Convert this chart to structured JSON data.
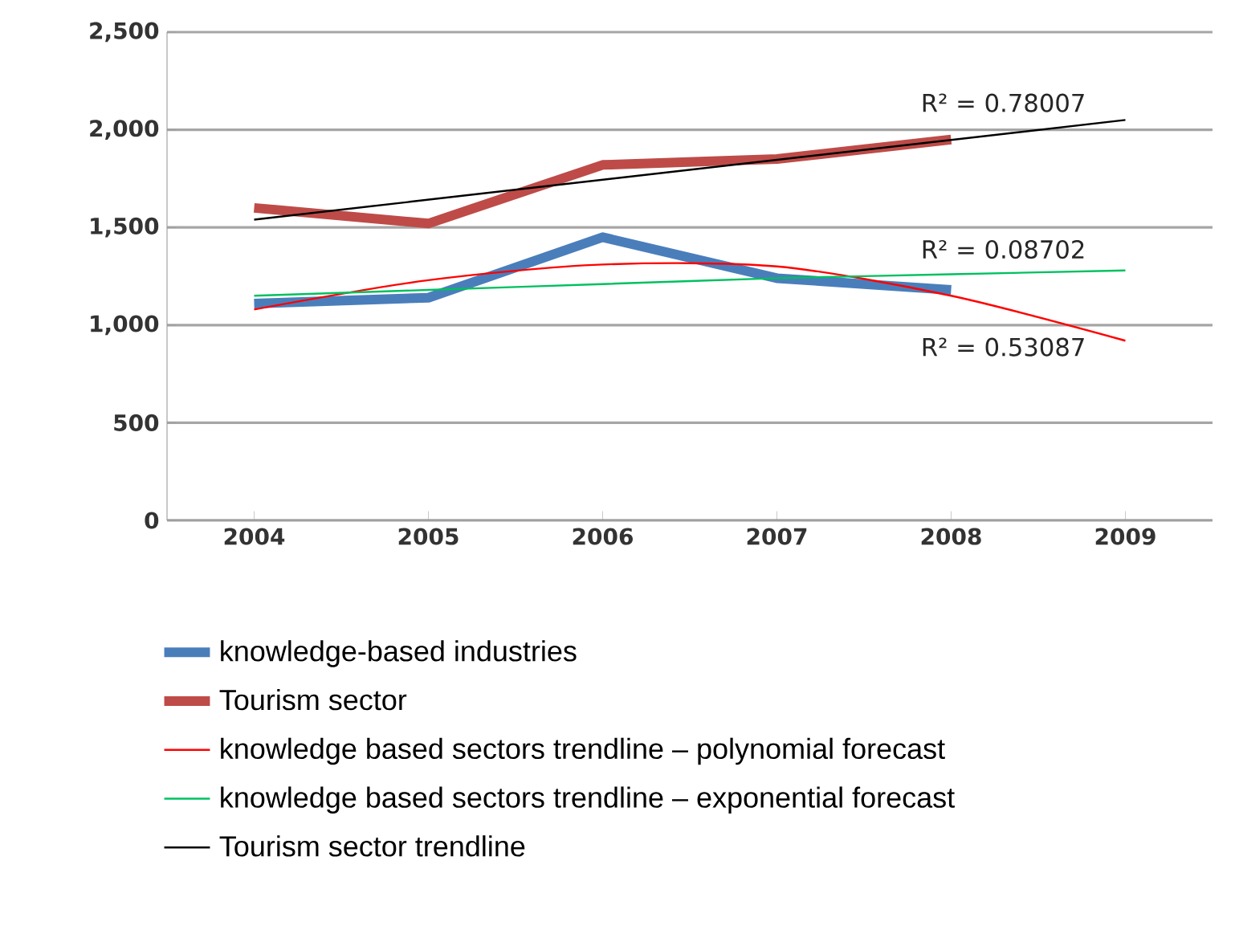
{
  "chart_data": {
    "type": "line",
    "x": [
      2004,
      2005,
      2006,
      2007,
      2008
    ],
    "xlim": [
      2003.5,
      2009.5
    ],
    "xticks": [
      2004,
      2005,
      2006,
      2007,
      2008,
      2009
    ],
    "ylim": [
      0,
      2500
    ],
    "yticks": [
      0,
      500,
      {
        "value": 1000,
        "label": "1,000"
      },
      {
        "value": 1500,
        "label": "1,500"
      },
      {
        "value": 2000,
        "label": "2,000"
      },
      {
        "value": 2500,
        "label": "2,500"
      }
    ],
    "grid": "y",
    "legend": "bottom",
    "marker": "none",
    "line_style": "solid",
    "series": [
      {
        "name": "knowledge-based industries",
        "color": "#4a7ebb",
        "values": [
          1110,
          1140,
          1450,
          1240,
          1180
        ]
      },
      {
        "name": "Tourism sector",
        "color": "#be4b48",
        "values": [
          1600,
          1520,
          1820,
          1850,
          1950
        ]
      },
      {
        "name": "knowledge based sectors trendline – polynomial forecast",
        "color": "#ff0000",
        "x": [
          2004,
          2005,
          2006,
          2007,
          2008,
          2009
        ],
        "values": [
          1080,
          1230,
          1310,
          1300,
          1150,
          920
        ]
      },
      {
        "name": "knowledge based sectors trendline – exponential forecast",
        "color": "#00c060",
        "x": [
          2004,
          2005,
          2006,
          2007,
          2008,
          2009
        ],
        "values": [
          1150,
          1180,
          1210,
          1240,
          1260,
          1280
        ]
      },
      {
        "name": "Tourism sector trendline",
        "color": "#000000",
        "x": [
          2004,
          2009
        ],
        "values": [
          1540,
          2050
        ]
      }
    ],
    "annotations": [
      "R² = 0.78007",
      "R² = 0.08702",
      "R² = 0.53087"
    ]
  }
}
